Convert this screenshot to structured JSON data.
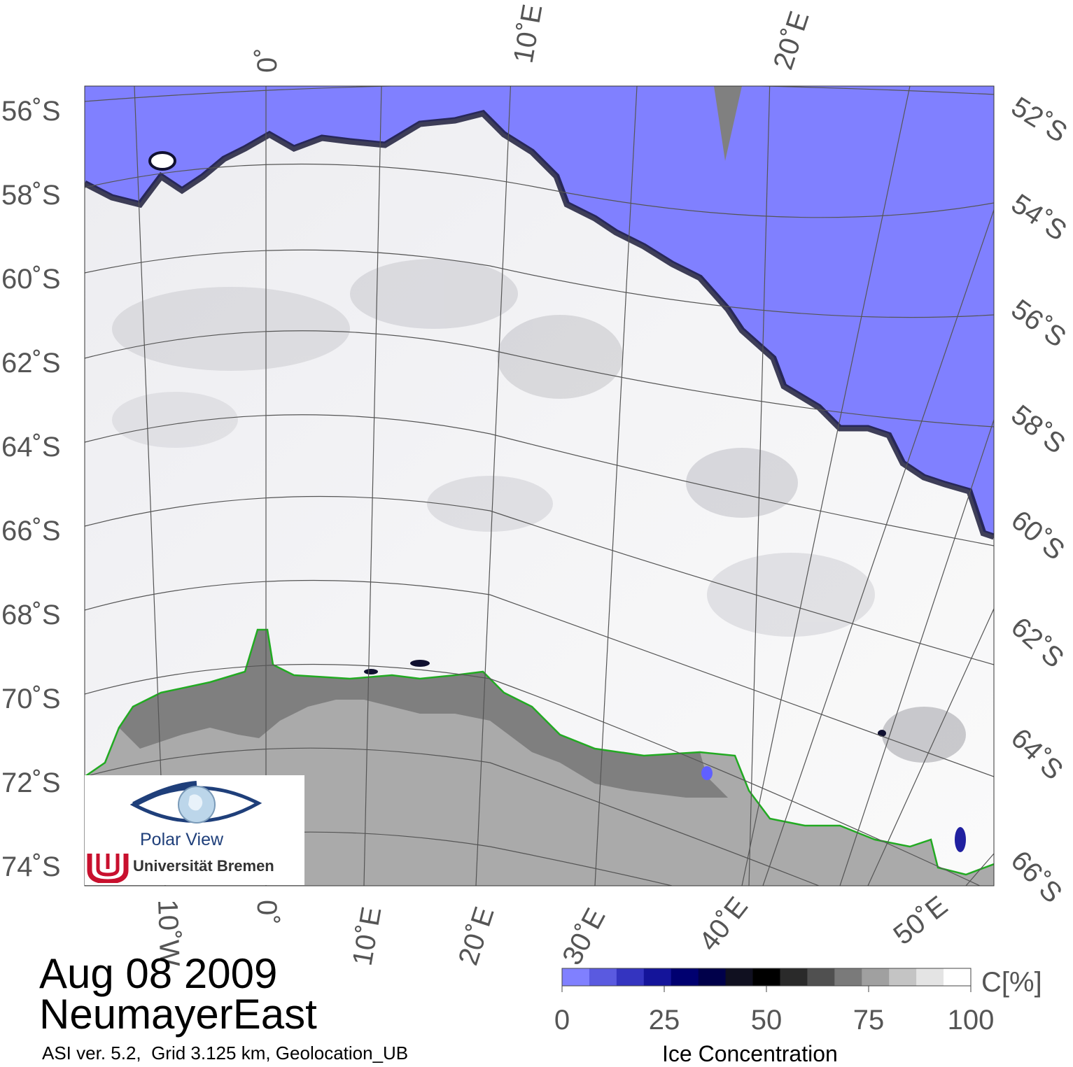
{
  "map": {
    "date": "Aug 08 2009",
    "region": "NeumayerEast",
    "credits": "ASI ver. 5.2,  Grid 3.125 km, Geolocation_UB",
    "colors": {
      "open_water": "#8080ff",
      "sea_ice": "#f6f6f8",
      "land": "#aaaaaa",
      "ice_shelf": "#7f7f7f",
      "coastline": "#22aa22",
      "graticule": "#555555"
    },
    "lat_labels_left": [
      "56˚S",
      "58˚S",
      "60˚S",
      "62˚S",
      "64˚S",
      "66˚S",
      "68˚S",
      "70˚S",
      "72˚S",
      "74˚S"
    ],
    "lat_labels_right": [
      "52˚S",
      "54˚S",
      "56˚S",
      "58˚S",
      "60˚S",
      "62˚S",
      "64˚S",
      "66˚S"
    ],
    "lon_labels_top": [
      "0˚",
      "10˚E",
      "20˚E"
    ],
    "lon_labels_bottom": [
      "10˚W",
      "0˚",
      "10˚E",
      "20˚E",
      "30˚E",
      "40˚E",
      "50˚E"
    ]
  },
  "logo": {
    "name": "Polar View",
    "institution": "Universität Bremen",
    "icon": "eye-globe-icon"
  },
  "colorbar": {
    "title": "Ice Concentration",
    "unit": "C[%]",
    "ticks": [
      "0",
      "25",
      "50",
      "75",
      "100"
    ],
    "stops": [
      "#8080ff",
      "#5a5ae0",
      "#3434c0",
      "#14149a",
      "#000070",
      "#00004a",
      "#101020",
      "#000000",
      "#2a2a2a",
      "#505050",
      "#7a7a7a",
      "#a0a0a0",
      "#c4c4c4",
      "#e4e4e4",
      "#ffffff"
    ]
  }
}
